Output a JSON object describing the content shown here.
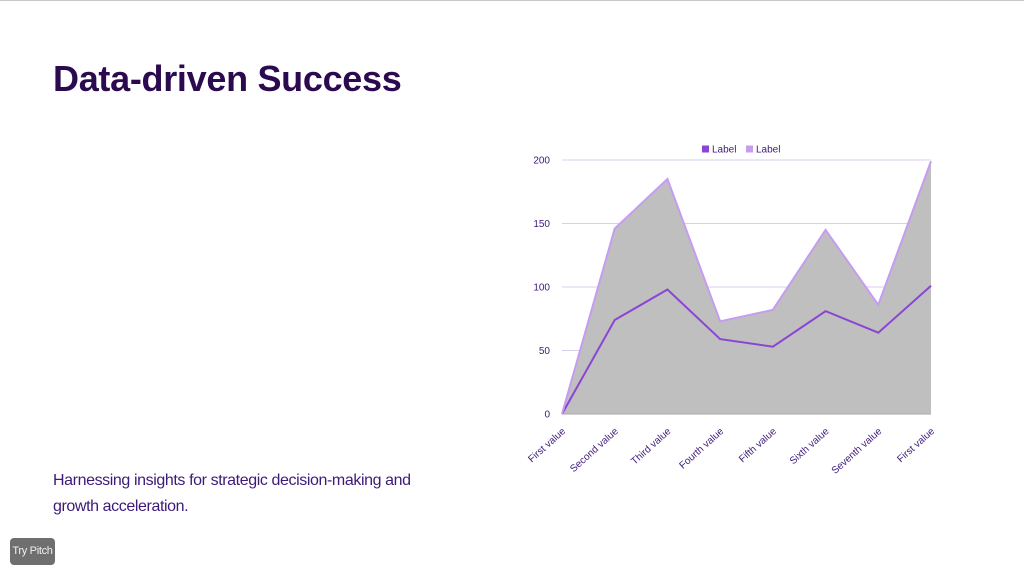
{
  "page": {
    "title": "Data-driven Success",
    "subtitle": "Harnessing insights for strategic decision-making and growth acceleration.",
    "badge": "Try Pitch"
  },
  "chart_data": {
    "type": "area",
    "categories": [
      "First value",
      "Second value",
      "Third value",
      "Fourth value",
      "Fifth value",
      "Sixth value",
      "Seventh value",
      "First value"
    ],
    "series": [
      {
        "name": "Label",
        "values": [
          0,
          74,
          98,
          59,
          53,
          81,
          64,
          101
        ],
        "color": "#8b45d6"
      },
      {
        "name": "Label",
        "values": [
          0,
          146,
          185,
          73,
          82,
          145,
          86,
          199
        ],
        "color": "#c69cf0"
      }
    ],
    "area_fill": "#bfbfbf",
    "ylim": [
      0,
      200
    ],
    "yticks": [
      0,
      50,
      100,
      150,
      200
    ],
    "grid": true,
    "legend_position": "top"
  }
}
